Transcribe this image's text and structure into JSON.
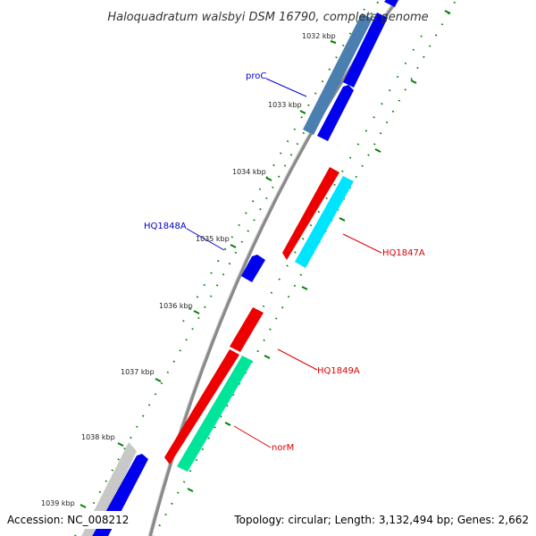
{
  "title": "Haloquadratum walsbyi DSM 16790, complete genome",
  "accession": "Accession: NC_008212",
  "summary": "Topology: circular; Length: 3,132,494 bp; Genes: 2,662",
  "kbp_labels": [
    "1032 kbp",
    "1033 kbp",
    "1034 kbp",
    "1035 kbp",
    "1036 kbp",
    "1037 kbp",
    "1038 kbp",
    "1039 kbp"
  ],
  "gene_labels": {
    "proC": "proC",
    "hq1848a": "HQ1848A",
    "hq1847a": "HQ1847A",
    "hq1849a": "HQ1849A",
    "normm": "norM"
  },
  "colors": {
    "backbone": "#8a8a8a",
    "tick_green": "#008000",
    "cds_blue": "#0000ee",
    "cds_steel": "#4a7fb0",
    "cds_red": "#ee0000",
    "cds_cyan": "#00e5ff",
    "cds_seagreen": "#00e59a",
    "cds_grey": "#c8c8c8",
    "label_blue": "#0000cc",
    "label_red": "#dd0000"
  }
}
